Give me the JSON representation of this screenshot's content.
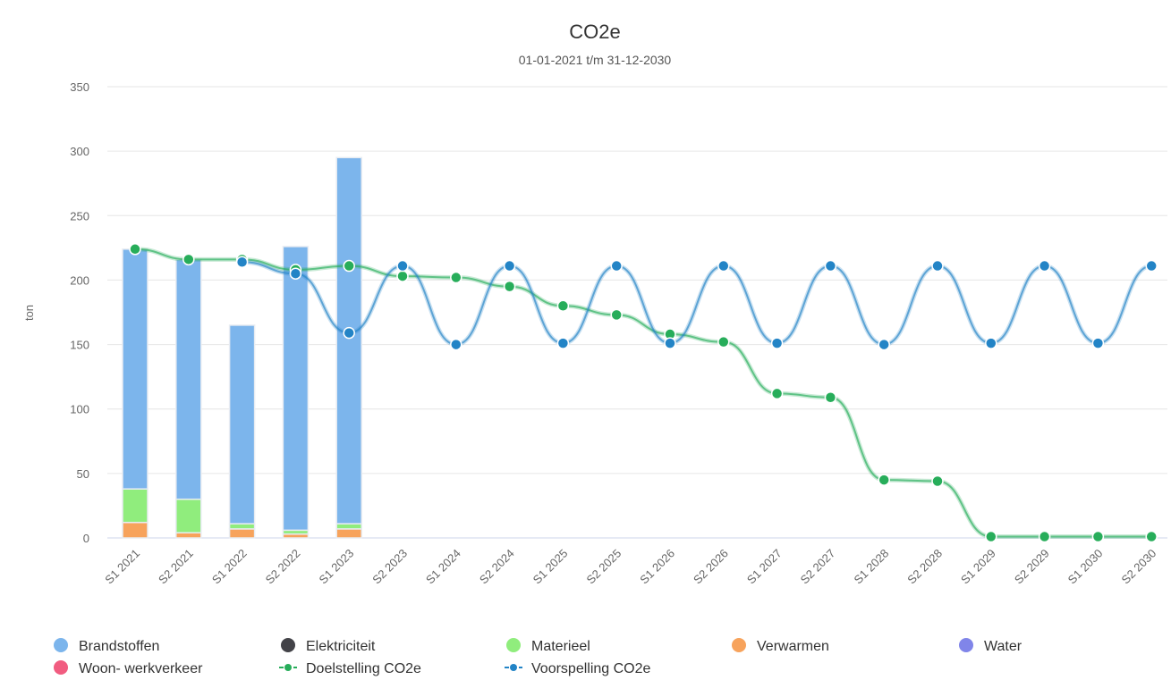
{
  "chart_data": {
    "type": "bar",
    "title": "CO2e",
    "subtitle": "01-01-2021 t/m 31-12-2030",
    "y_label": "ton",
    "categories": [
      "S1 2021",
      "S2 2021",
      "S1 2022",
      "S2 2022",
      "S1 2023",
      "S2 2023",
      "S1 2024",
      "S2 2024",
      "S1 2025",
      "S2 2025",
      "S1 2026",
      "S2 2026",
      "S1 2027",
      "S2 2027",
      "S1 2028",
      "S2 2028",
      "S1 2029",
      "S2 2029",
      "S1 2030",
      "S2 2030"
    ],
    "ylim": [
      0,
      350
    ],
    "yticks": [
      0,
      50,
      100,
      150,
      200,
      250,
      300,
      350
    ],
    "grid": true,
    "stacked": true,
    "legend": "bottom",
    "series": [
      {
        "name": "Brandstoffen",
        "type": "column",
        "color": "#7cb5ec",
        "values": [
          186,
          186,
          154,
          220,
          284,
          null,
          null,
          null,
          null,
          null,
          null,
          null,
          null,
          null,
          null,
          null,
          null,
          null,
          null,
          null
        ]
      },
      {
        "name": "Elektriciteit",
        "type": "column",
        "color": "#434348",
        "values": [
          0,
          0,
          0,
          0,
          0,
          null,
          null,
          null,
          null,
          null,
          null,
          null,
          null,
          null,
          null,
          null,
          null,
          null,
          null,
          null
        ]
      },
      {
        "name": "Materieel",
        "type": "column",
        "color": "#90ed7d",
        "values": [
          26,
          26,
          4,
          3,
          4,
          null,
          null,
          null,
          null,
          null,
          null,
          null,
          null,
          null,
          null,
          null,
          null,
          null,
          null,
          null
        ]
      },
      {
        "name": "Verwarmen",
        "type": "column",
        "color": "#f7a35c",
        "values": [
          12,
          4,
          7,
          3,
          7,
          null,
          null,
          null,
          null,
          null,
          null,
          null,
          null,
          null,
          null,
          null,
          null,
          null,
          null,
          null
        ]
      },
      {
        "name": "Water",
        "type": "column",
        "color": "#8085e9",
        "values": [
          0,
          0,
          0,
          0,
          0,
          null,
          null,
          null,
          null,
          null,
          null,
          null,
          null,
          null,
          null,
          null,
          null,
          null,
          null,
          null
        ]
      },
      {
        "name": "Woon- werkverkeer",
        "type": "column",
        "color": "#f15c80",
        "values": [
          0,
          0,
          0,
          0,
          0,
          null,
          null,
          null,
          null,
          null,
          null,
          null,
          null,
          null,
          null,
          null,
          null,
          null,
          null,
          null
        ]
      },
      {
        "name": "Doelstelling CO2e",
        "type": "spline",
        "color": "#27ad5a",
        "values": [
          224,
          216,
          216,
          208,
          211,
          203,
          202,
          195,
          180,
          173,
          158,
          152,
          112,
          109,
          45,
          44,
          1,
          1,
          1,
          1
        ]
      },
      {
        "name": "Voorspelling CO2e",
        "type": "spline",
        "color": "#2384c6",
        "values": [
          null,
          null,
          214,
          205,
          159,
          211,
          150,
          211,
          151,
          211,
          151,
          211,
          151,
          211,
          150,
          211,
          151,
          211,
          151,
          211
        ]
      }
    ]
  }
}
